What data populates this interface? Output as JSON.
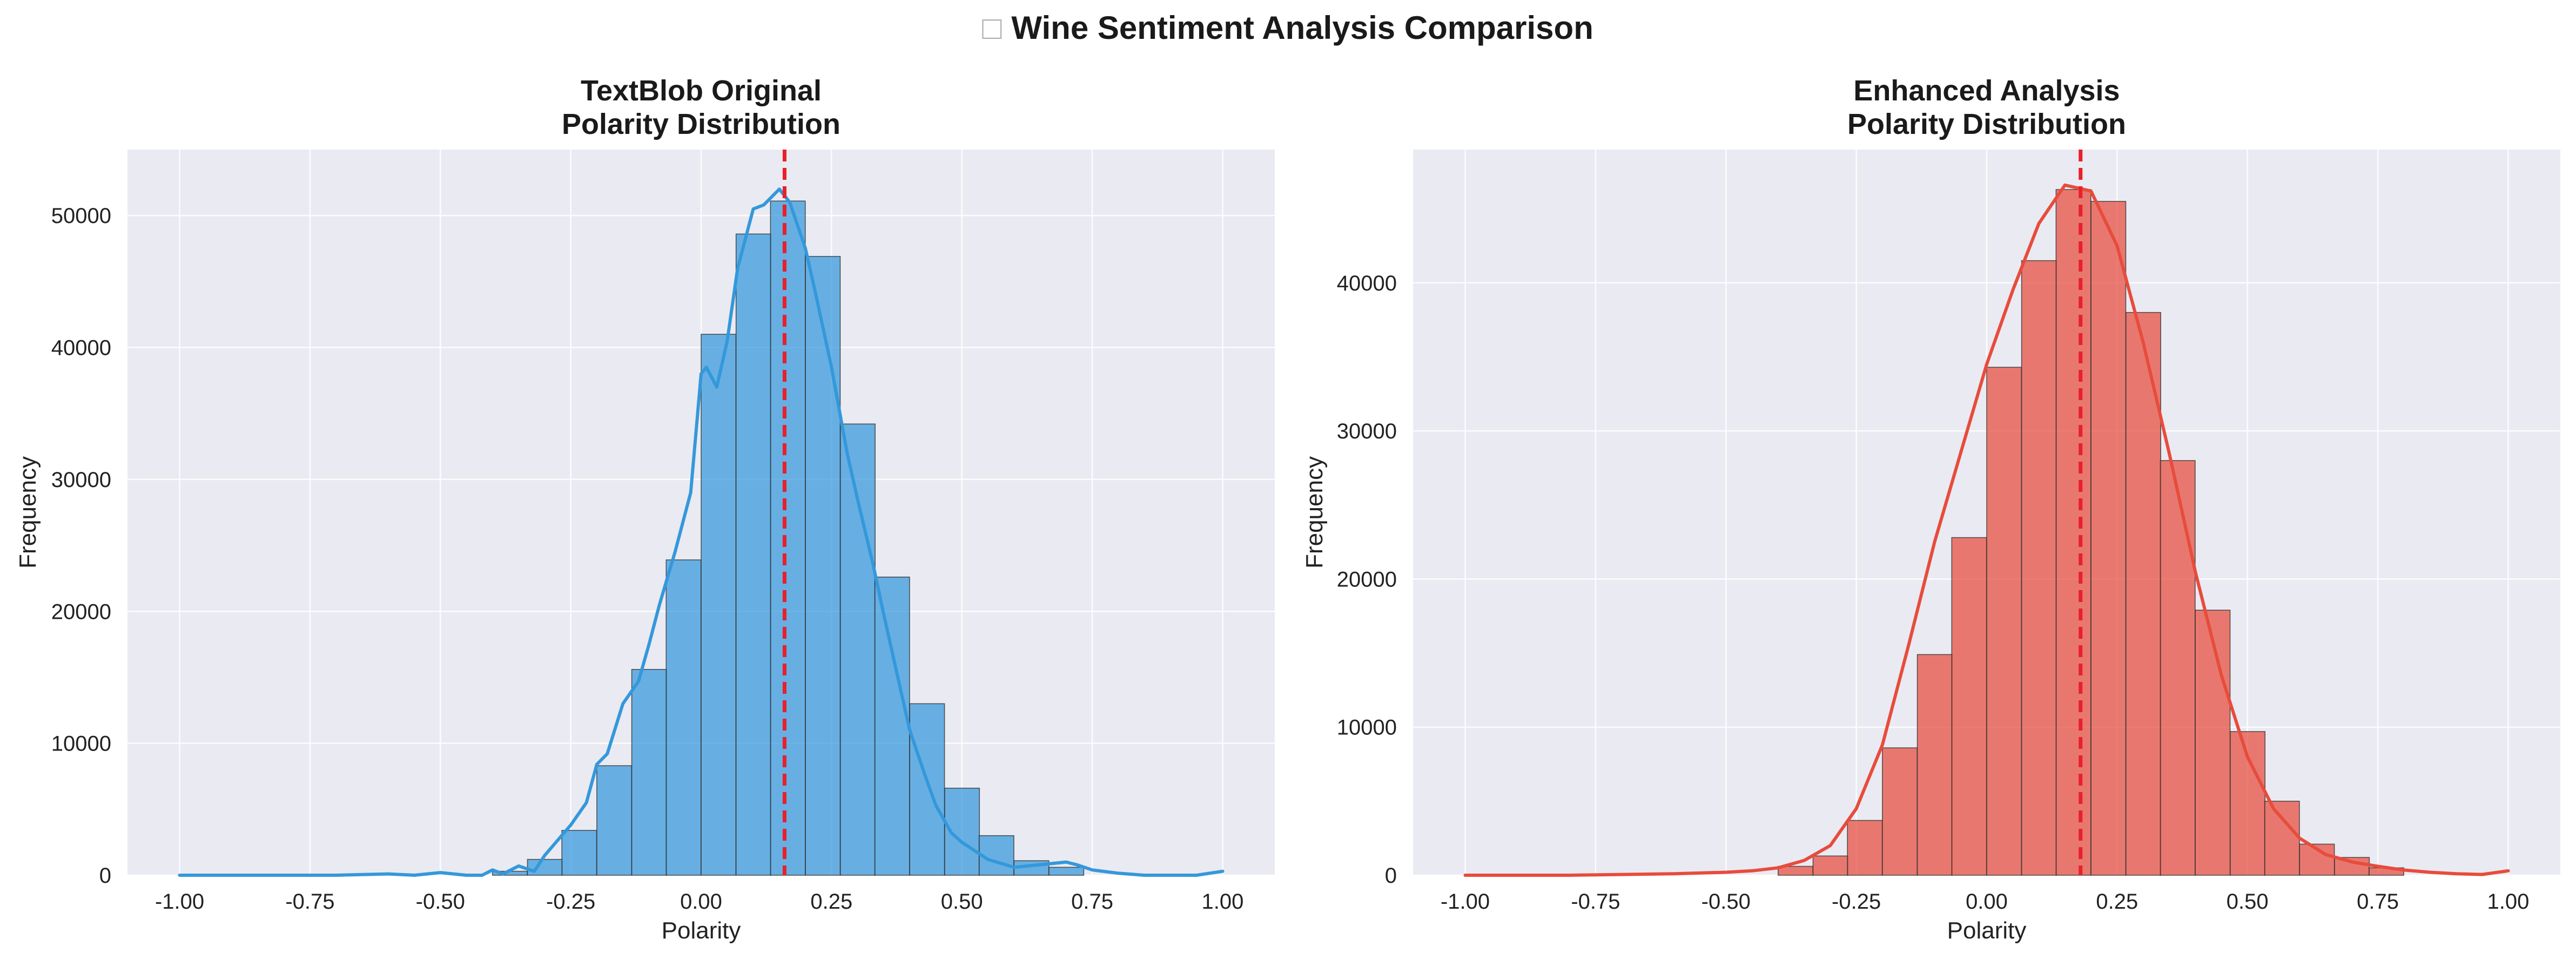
{
  "figure": {
    "title_icon": "□",
    "title": "Wine Sentiment Analysis Comparison"
  },
  "colors": {
    "background": "#eaeaf2",
    "grid": "#ffffff",
    "textblob": "#3498db",
    "enhanced": "#e74c3c",
    "mean_line": "#e8202a",
    "bar_edge": "#333333"
  },
  "chart_data": [
    {
      "type": "bar",
      "title_line1": "TextBlob Original",
      "title_line2": "Polarity Distribution",
      "xlabel": "Polarity",
      "ylabel": "Frequency",
      "xlim": [
        -1.1,
        1.1
      ],
      "ylim": [
        0,
        55000
      ],
      "xticks": [
        -1.0,
        -0.75,
        -0.5,
        -0.25,
        0.0,
        0.25,
        0.5,
        0.75,
        1.0
      ],
      "xtick_labels": [
        "-1.00",
        "-0.75",
        "-0.50",
        "-0.25",
        "0.00",
        "0.25",
        "0.50",
        "0.75",
        "1.00"
      ],
      "yticks": [
        0,
        10000,
        20000,
        30000,
        40000,
        50000
      ],
      "ytick_labels": [
        "0",
        "10000",
        "20000",
        "30000",
        "40000",
        "50000"
      ],
      "grid": true,
      "bin_width": 0.0667,
      "bin_lefts": [
        -0.4,
        -0.333,
        -0.267,
        -0.2,
        -0.133,
        -0.067,
        0.0,
        0.067,
        0.133,
        0.2,
        0.267,
        0.333,
        0.4,
        0.467,
        0.533,
        0.6,
        0.667
      ],
      "bar_values": [
        300,
        1200,
        3400,
        8300,
        15600,
        23900,
        41000,
        48600,
        51100,
        46900,
        34200,
        22600,
        13000,
        6600,
        3000,
        1100,
        600
      ],
      "kde": {
        "x": [
          -1.0,
          -0.9,
          -0.8,
          -0.7,
          -0.6,
          -0.55,
          -0.5,
          -0.45,
          -0.42,
          -0.4,
          -0.38,
          -0.35,
          -0.32,
          -0.3,
          -0.25,
          -0.22,
          -0.2,
          -0.18,
          -0.15,
          -0.12,
          -0.1,
          -0.08,
          -0.05,
          -0.02,
          0.0,
          0.01,
          0.03,
          0.05,
          0.07,
          0.1,
          0.12,
          0.15,
          0.17,
          0.2,
          0.22,
          0.25,
          0.28,
          0.3,
          0.33,
          0.35,
          0.38,
          0.4,
          0.43,
          0.45,
          0.48,
          0.5,
          0.55,
          0.6,
          0.65,
          0.7,
          0.72,
          0.75,
          0.8,
          0.85,
          0.9,
          0.95,
          1.0
        ],
        "y": [
          0,
          0,
          0,
          0,
          100,
          0,
          200,
          0,
          0,
          400,
          100,
          700,
          300,
          1500,
          3800,
          5500,
          8400,
          9200,
          13000,
          14700,
          17500,
          20500,
          24500,
          29000,
          38000,
          38500,
          37000,
          40500,
          46000,
          50500,
          50800,
          52000,
          51000,
          47500,
          44000,
          38500,
          32000,
          28500,
          23500,
          19800,
          14500,
          11000,
          7500,
          5300,
          3200,
          2500,
          1200,
          600,
          800,
          1000,
          800,
          400,
          150,
          0,
          0,
          0,
          300
        ]
      },
      "mean": 0.16
    },
    {
      "type": "bar",
      "title_line1": "Enhanced Analysis",
      "title_line2": "Polarity Distribution",
      "xlabel": "Polarity",
      "ylabel": "Frequency",
      "xlim": [
        -1.1,
        1.1
      ],
      "ylim": [
        0,
        49000
      ],
      "xticks": [
        -1.0,
        -0.75,
        -0.5,
        -0.25,
        0.0,
        0.25,
        0.5,
        0.75,
        1.0
      ],
      "xtick_labels": [
        "-1.00",
        "-0.75",
        "-0.50",
        "-0.25",
        "0.00",
        "0.25",
        "0.50",
        "0.75",
        "1.00"
      ],
      "yticks": [
        0,
        10000,
        20000,
        30000,
        40000
      ],
      "ytick_labels": [
        "0",
        "10000",
        "20000",
        "30000",
        "40000"
      ],
      "grid": true,
      "bin_width": 0.0667,
      "bin_lefts": [
        -0.4,
        -0.333,
        -0.267,
        -0.2,
        -0.133,
        -0.067,
        0.0,
        0.067,
        0.133,
        0.2,
        0.267,
        0.333,
        0.4,
        0.467,
        0.533,
        0.6,
        0.667,
        0.733
      ],
      "bar_values": [
        600,
        1300,
        3700,
        8600,
        14900,
        22800,
        34300,
        41500,
        46300,
        45500,
        38000,
        28000,
        17900,
        9700,
        5000,
        2100,
        1200,
        500
      ],
      "kde": {
        "x": [
          -1.0,
          -0.8,
          -0.6,
          -0.5,
          -0.45,
          -0.4,
          -0.35,
          -0.3,
          -0.25,
          -0.2,
          -0.15,
          -0.1,
          -0.05,
          0.0,
          0.05,
          0.1,
          0.15,
          0.2,
          0.25,
          0.3,
          0.35,
          0.4,
          0.45,
          0.5,
          0.55,
          0.6,
          0.65,
          0.7,
          0.75,
          0.8,
          0.85,
          0.9,
          0.95,
          1.0
        ],
        "y": [
          0,
          0,
          100,
          200,
          300,
          500,
          1000,
          2000,
          4500,
          8800,
          15500,
          22500,
          28500,
          34500,
          39500,
          44000,
          46600,
          46200,
          42500,
          36000,
          28500,
          20500,
          13500,
          8000,
          4500,
          2500,
          1400,
          900,
          600,
          350,
          200,
          100,
          50,
          300
        ]
      },
      "mean": 0.18
    }
  ]
}
